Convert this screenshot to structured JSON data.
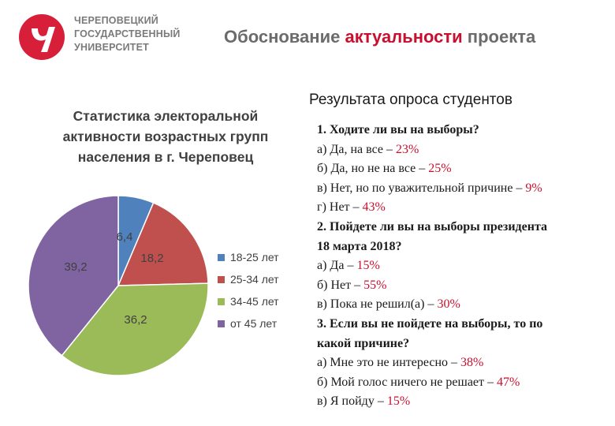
{
  "header": {
    "university_lines": [
      "ЧЕРЕПОВЕЦКИЙ",
      "ГОСУДАРСТВЕННЫЙ",
      "УНИВЕРСИТЕТ"
    ],
    "title_pre": "Обоснование ",
    "title_accent": "актуальности",
    "title_post": " проекта",
    "accent_color": "#c8102e",
    "logo_icon": "university-logo-icon"
  },
  "chart_data": {
    "type": "pie",
    "title_lines": [
      "Статистика электоральной",
      "активности возрастных групп",
      "населения в г. Череповец"
    ],
    "categories": [
      "18-25 лет",
      "25-34 лет",
      "34-45 лет",
      "от 45 лет"
    ],
    "values": [
      6.4,
      18.2,
      36.2,
      39.2
    ],
    "value_labels": [
      "6,4",
      "18,2",
      "36,2",
      "39,2"
    ],
    "colors": [
      "#4f81bd",
      "#c0504d",
      "#9bbb59",
      "#8064a2"
    ],
    "legend_position": "right"
  },
  "survey": {
    "heading": "Результата опроса студентов",
    "lines": [
      {
        "type": "question",
        "text": " 1. Ходите ли вы на выборы?",
        "pct": ""
      },
      {
        "type": "answer",
        "text": "а) Да, на все – ",
        "pct": "23%"
      },
      {
        "type": "answer",
        "text": "б) Да, но не на все – ",
        "pct": "25%"
      },
      {
        "type": "answer",
        "text": "в) Нет, но по уважительной причине – ",
        "pct": "9%"
      },
      {
        "type": "answer",
        "text": "г) Нет – ",
        "pct": "43%"
      },
      {
        "type": "question",
        "text": " 2. Пойдете ли вы на выборы президента",
        "pct": ""
      },
      {
        "type": "question",
        "text": "18 марта 2018?",
        "pct": ""
      },
      {
        "type": "answer",
        "text": "а) Да – ",
        "pct": "15%"
      },
      {
        "type": "answer",
        "text": "б) Нет – ",
        "pct": "55%"
      },
      {
        "type": "answer",
        "text": "в) Пока не решил(а) – ",
        "pct": "30%"
      },
      {
        "type": "question",
        "text": " 3. Если вы не пойдете на выборы, то по",
        "pct": ""
      },
      {
        "type": "question",
        "text": "какой причине?",
        "pct": ""
      },
      {
        "type": "answer",
        "text": "а) Мне это не интересно – ",
        "pct": "38%"
      },
      {
        "type": "answer",
        "text": "б) Мой голос ничего не решает – ",
        "pct": "47%"
      },
      {
        "type": "answer",
        "text": "в) Я пойду – ",
        "pct": "15%"
      }
    ]
  }
}
